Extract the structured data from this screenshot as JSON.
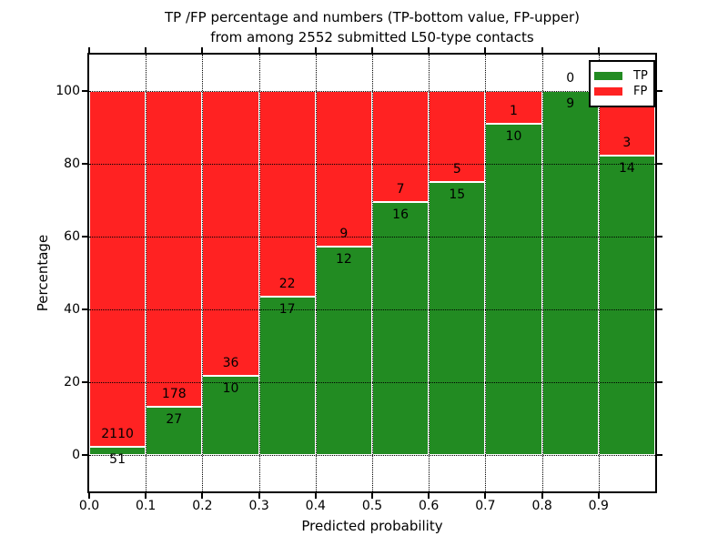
{
  "title": {
    "line1": "TP /FP percentage and numbers (TP-bottom value, FP-upper)",
    "line2": "from among 2552 submitted L50-type contacts"
  },
  "axes": {
    "xlabel": "Predicted probability",
    "ylabel": "Percentage",
    "xtick_labels": [
      "0.0",
      "0.1",
      "0.2",
      "0.3",
      "0.4",
      "0.5",
      "0.6",
      "0.7",
      "0.8",
      "0.9"
    ],
    "ytick_labels": [
      "0",
      "20",
      "40",
      "60",
      "80",
      "100"
    ]
  },
  "legend": {
    "entries": [
      {
        "label": "TP",
        "color": "#228b22"
      },
      {
        "label": "FP",
        "color": "#ff2222"
      }
    ]
  },
  "colors": {
    "tp_green": "#228b22",
    "fp_red": "#ff2222",
    "axis": "#000000",
    "background": "#ffffff"
  },
  "chart_data": {
    "type": "bar",
    "stacked": true,
    "normalized_to_percent": true,
    "title": "TP /FP percentage and numbers (TP-bottom value, FP-upper) from among 2552 submitted L50-type contacts",
    "xlabel": "Predicted probability",
    "ylabel": "Percentage",
    "xlim": [
      0.0,
      1.0
    ],
    "ylim": [
      -10,
      110
    ],
    "grid": "dotted",
    "legend_position": "upper right",
    "bin_edges": [
      0.0,
      0.1,
      0.2,
      0.3,
      0.4,
      0.5,
      0.6,
      0.7,
      0.8,
      0.9,
      1.0
    ],
    "xticks": [
      0.0,
      0.1,
      0.2,
      0.3,
      0.4,
      0.5,
      0.6,
      0.7,
      0.8,
      0.9
    ],
    "yticks": [
      0,
      20,
      40,
      60,
      80,
      100
    ],
    "series": [
      {
        "name": "TP",
        "color": "#228b22",
        "counts": [
          51,
          27,
          10,
          17,
          12,
          16,
          15,
          10,
          9,
          14
        ]
      },
      {
        "name": "FP",
        "color": "#ff2222",
        "counts": [
          2110,
          178,
          36,
          22,
          9,
          7,
          5,
          1,
          0,
          3
        ]
      }
    ],
    "tp_percent": [
      2.4,
      13.2,
      21.7,
      43.6,
      57.1,
      69.6,
      75.0,
      90.9,
      100.0,
      82.4
    ]
  }
}
